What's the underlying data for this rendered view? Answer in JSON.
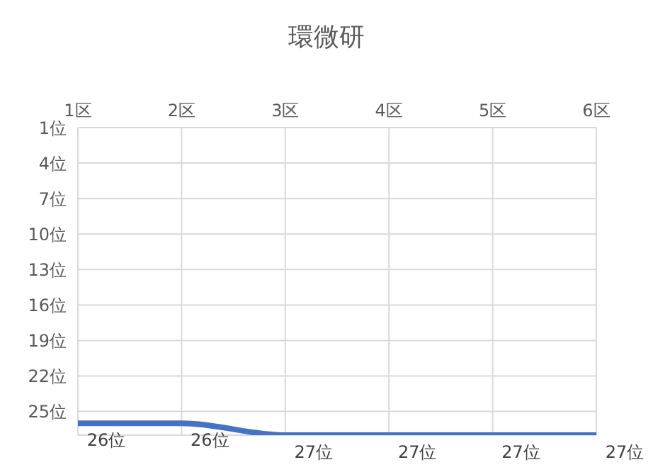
{
  "chart_data": {
    "type": "line",
    "title": "環微研",
    "categories": [
      "1区",
      "2区",
      "3区",
      "4区",
      "5区",
      "6区"
    ],
    "series": [
      {
        "color": "#4472c4",
        "values": [
          26,
          26,
          27,
          27,
          27,
          27
        ]
      }
    ],
    "value_labels": [
      "26位",
      "26位",
      "27位",
      "27位",
      "27位",
      "27位"
    ],
    "ylim": [
      27,
      1
    ],
    "yticks": [
      {
        "value": 1,
        "label": "1位"
      },
      {
        "value": 4,
        "label": "4位"
      },
      {
        "value": 7,
        "label": "7位"
      },
      {
        "value": 10,
        "label": "10位"
      },
      {
        "value": 13,
        "label": "13位"
      },
      {
        "value": 16,
        "label": "16位"
      },
      {
        "value": 19,
        "label": "19位"
      },
      {
        "value": 22,
        "label": "22位"
      },
      {
        "value": 25,
        "label": "25位"
      }
    ],
    "grid": true,
    "marker": "none",
    "line_style": "solid",
    "legend": false
  }
}
